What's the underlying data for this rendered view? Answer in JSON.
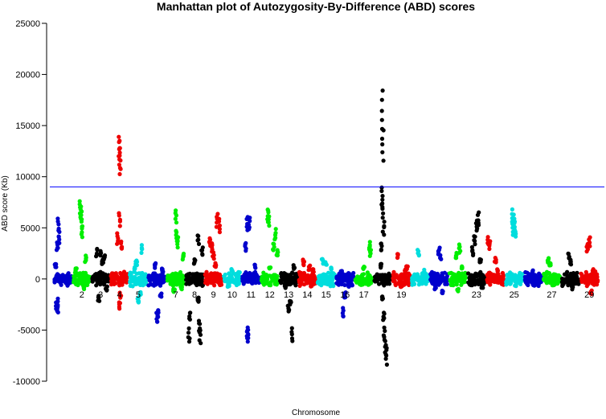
{
  "chart_data": {
    "type": "scatter",
    "title": "Manhattan plot of Autozygosity-By-Difference (ABD) scores",
    "xlabel": "Chromosome",
    "ylabel": "ABD score (Kb)",
    "ylim": [
      -10000,
      25000
    ],
    "yticks": [
      "25000",
      "20000",
      "15000",
      "10000",
      "5000",
      "0",
      "-5000",
      "-10000"
    ],
    "ytick_values": [
      25000,
      20000,
      15000,
      10000,
      5000,
      0,
      -5000,
      -10000
    ],
    "threshold": {
      "y": 9000,
      "color": "#0000ff"
    },
    "colors": [
      "#0000cc",
      "#00ee00",
      "#000000",
      "#ee0000",
      "#00dddd"
    ],
    "chromosome_labels": [
      {
        "label": "2",
        "x": 2
      },
      {
        "label": "3",
        "x": 3
      },
      {
        "label": "4",
        "x": 4
      },
      {
        "label": "5",
        "x": 5
      },
      {
        "label": "7",
        "x": 7
      },
      {
        "label": "8",
        "x": 8
      },
      {
        "label": "9",
        "x": 9
      },
      {
        "label": "10",
        "x": 10
      },
      {
        "label": "11",
        "x": 11
      },
      {
        "label": "12",
        "x": 12
      },
      {
        "label": "13",
        "x": 13
      },
      {
        "label": "14",
        "x": 14
      },
      {
        "label": "15",
        "x": 15
      },
      {
        "label": "16",
        "x": 16
      },
      {
        "label": "17",
        "x": 17
      },
      {
        "label": "19",
        "x": 19
      },
      {
        "label": "23",
        "x": 23
      },
      {
        "label": "25",
        "x": 25
      },
      {
        "label": "27",
        "x": 27
      },
      {
        "label": "29",
        "x": 29
      }
    ],
    "chromosomes": [
      {
        "chr": 1,
        "start": 0.5,
        "end": 1.5,
        "color": "#0000cc",
        "cluster": [
          [
            0.6,
            1500
          ],
          [
            0.75,
            5800
          ],
          [
            0.7,
            3500
          ],
          [
            0.65,
            -3000
          ],
          [
            0.7,
            -2500
          ],
          [
            0.72,
            -3200
          ],
          [
            0.8,
            4500
          ]
        ]
      },
      {
        "chr": 2,
        "start": 1.5,
        "end": 2.5,
        "color": "#00ee00",
        "cluster": [
          [
            1.9,
            7700
          ],
          [
            1.95,
            7200
          ],
          [
            2.0,
            6500
          ],
          [
            2.0,
            5200
          ],
          [
            1.7,
            1000
          ],
          [
            2.1,
            -900
          ],
          [
            2.2,
            2200
          ]
        ]
      },
      {
        "chr": 3,
        "start": 2.5,
        "end": 3.5,
        "color": "#000000",
        "cluster": [
          [
            2.8,
            2900
          ],
          [
            3.0,
            2800
          ],
          [
            3.2,
            2300
          ],
          [
            2.9,
            -2100
          ],
          [
            3.3,
            -1100
          ],
          [
            3.1,
            1800
          ]
        ]
      },
      {
        "chr": 4,
        "start": 3.5,
        "end": 4.5,
        "color": "#ee0000",
        "cluster": [
          [
            4.0,
            14000
          ],
          [
            4.05,
            13500
          ],
          [
            4.02,
            12900
          ],
          [
            4.0,
            6500
          ],
          [
            3.9,
            4400
          ],
          [
            4.1,
            3600
          ],
          [
            4.0,
            -2800
          ],
          [
            4.05,
            -1800
          ]
        ]
      },
      {
        "chr": 5,
        "start": 4.5,
        "end": 5.5,
        "color": "#00dddd",
        "cluster": [
          [
            5.2,
            3300
          ],
          [
            4.9,
            1800
          ],
          [
            5.0,
            -2300
          ],
          [
            5.1,
            -1500
          ],
          [
            4.8,
            1200
          ]
        ]
      },
      {
        "chr": 6,
        "start": 5.5,
        "end": 6.5,
        "color": "#0000cc",
        "cluster": [
          [
            6.0,
            -4300
          ],
          [
            6.05,
            -3700
          ],
          [
            5.9,
            1500
          ],
          [
            6.2,
            -1800
          ],
          [
            6.3,
            1000
          ]
        ]
      },
      {
        "chr": 7,
        "start": 6.5,
        "end": 7.5,
        "color": "#00ee00",
        "cluster": [
          [
            7.0,
            6800
          ],
          [
            7.05,
            4700
          ],
          [
            7.1,
            4000
          ],
          [
            7.4,
            2500
          ],
          [
            7.3,
            -1000
          ],
          [
            6.9,
            -1200
          ]
        ]
      },
      {
        "chr": 8,
        "start": 7.5,
        "end": 8.5,
        "color": "#000000",
        "cluster": [
          [
            7.7,
            -6200
          ],
          [
            7.75,
            -4000
          ],
          [
            8.2,
            4300
          ],
          [
            8.3,
            -6200
          ],
          [
            8.25,
            -5000
          ],
          [
            8.2,
            -2300
          ],
          [
            8.0,
            1800
          ],
          [
            8.4,
            3000
          ]
        ]
      },
      {
        "chr": 9,
        "start": 8.5,
        "end": 9.5,
        "color": "#ee0000",
        "cluster": [
          [
            9.2,
            6400
          ],
          [
            9.3,
            5800
          ],
          [
            8.8,
            4100
          ],
          [
            8.9,
            3400
          ],
          [
            9.0,
            2500
          ],
          [
            9.1,
            1500
          ]
        ]
      },
      {
        "chr": 10,
        "start": 9.5,
        "end": 10.5,
        "color": "#00dddd",
        "cluster": [
          [
            9.8,
            -700
          ],
          [
            10.0,
            900
          ],
          [
            10.2,
            -500
          ],
          [
            10.3,
            600
          ]
        ]
      },
      {
        "chr": 11,
        "start": 10.5,
        "end": 11.5,
        "color": "#0000cc",
        "cluster": [
          [
            10.8,
            6100
          ],
          [
            10.9,
            6000
          ],
          [
            10.8,
            -5800
          ],
          [
            10.85,
            -6200
          ],
          [
            11.2,
            1400
          ],
          [
            10.7,
            3500
          ]
        ]
      },
      {
        "chr": 12,
        "start": 11.5,
        "end": 12.5,
        "color": "#00ee00",
        "cluster": [
          [
            11.9,
            6900
          ],
          [
            11.95,
            6400
          ],
          [
            12.3,
            4800
          ],
          [
            12.2,
            3500
          ],
          [
            12.4,
            2800
          ],
          [
            12.0,
            1200
          ]
        ]
      },
      {
        "chr": 13,
        "start": 12.5,
        "end": 13.5,
        "color": "#000000",
        "cluster": [
          [
            13.2,
            -6100
          ],
          [
            13.0,
            -3300
          ],
          [
            13.1,
            -2600
          ],
          [
            13.3,
            1300
          ],
          [
            12.8,
            -900
          ]
        ]
      },
      {
        "chr": 14,
        "start": 13.5,
        "end": 14.5,
        "color": "#ee0000",
        "cluster": [
          [
            13.8,
            1800
          ],
          [
            14.1,
            1200
          ],
          [
            14.2,
            -700
          ],
          [
            14.3,
            900
          ]
        ]
      },
      {
        "chr": 15,
        "start": 14.5,
        "end": 15.5,
        "color": "#00dddd",
        "cluster": [
          [
            14.8,
            2000
          ],
          [
            15.0,
            1600
          ],
          [
            15.2,
            -600
          ],
          [
            15.3,
            1100
          ]
        ]
      },
      {
        "chr": 16,
        "start": 15.5,
        "end": 16.5,
        "color": "#0000cc",
        "cluster": [
          [
            15.9,
            -3700
          ],
          [
            16.0,
            -1800
          ],
          [
            15.8,
            800
          ],
          [
            16.2,
            -700
          ]
        ]
      },
      {
        "chr": 17,
        "start": 16.5,
        "end": 17.5,
        "color": "#00ee00",
        "cluster": [
          [
            17.3,
            3600
          ],
          [
            17.35,
            2800
          ],
          [
            17.0,
            1200
          ],
          [
            16.9,
            -600
          ]
        ]
      },
      {
        "chr": 18,
        "start": 17.5,
        "end": 18.5,
        "color": "#000000",
        "cluster": [
          [
            18.0,
            18300
          ],
          [
            18.02,
            14500
          ],
          [
            17.98,
            9000
          ],
          [
            18.0,
            7500
          ],
          [
            18.05,
            5500
          ],
          [
            17.95,
            3500
          ],
          [
            17.9,
            1500
          ],
          [
            18.0,
            -2000
          ],
          [
            18.05,
            -4000
          ],
          [
            18.1,
            -6000
          ],
          [
            18.15,
            -7500
          ],
          [
            18.2,
            -8300
          ]
        ]
      },
      {
        "chr": 19,
        "start": 18.5,
        "end": 19.5,
        "color": "#ee0000",
        "cluster": [
          [
            18.8,
            2500
          ],
          [
            19.0,
            -800
          ],
          [
            19.2,
            900
          ],
          [
            19.3,
            1300
          ]
        ]
      },
      {
        "chr": 20,
        "start": 19.5,
        "end": 20.5,
        "color": "#00dddd",
        "cluster": [
          [
            19.9,
            2900
          ],
          [
            20.1,
            -500
          ],
          [
            20.2,
            800
          ]
        ]
      },
      {
        "chr": 21,
        "start": 20.5,
        "end": 21.5,
        "color": "#0000cc",
        "cluster": [
          [
            21.0,
            3000
          ],
          [
            21.1,
            2400
          ],
          [
            20.8,
            -900
          ],
          [
            21.2,
            -1500
          ]
        ]
      },
      {
        "chr": 22,
        "start": 21.5,
        "end": 22.5,
        "color": "#00ee00",
        "cluster": [
          [
            22.1,
            3300
          ],
          [
            21.9,
            2500
          ],
          [
            22.0,
            -1200
          ],
          [
            22.2,
            1200
          ]
        ]
      },
      {
        "chr": 23,
        "start": 22.5,
        "end": 23.5,
        "color": "#000000",
        "cluster": [
          [
            23.1,
            6500
          ],
          [
            23.0,
            5800
          ],
          [
            22.9,
            4300
          ],
          [
            22.8,
            3000
          ],
          [
            23.2,
            2000
          ],
          [
            23.3,
            -900
          ]
        ]
      },
      {
        "chr": 24,
        "start": 23.5,
        "end": 24.5,
        "color": "#ee0000",
        "cluster": [
          [
            23.6,
            4100
          ],
          [
            23.7,
            3700
          ],
          [
            24.0,
            2000
          ],
          [
            24.1,
            1000
          ]
        ]
      },
      {
        "chr": 25,
        "start": 24.5,
        "end": 25.5,
        "color": "#00dddd",
        "cluster": [
          [
            24.9,
            6700
          ],
          [
            25.0,
            6300
          ],
          [
            24.95,
            5500
          ],
          [
            25.05,
            5100
          ]
        ]
      },
      {
        "chr": 26,
        "start": 25.5,
        "end": 26.5,
        "color": "#0000cc",
        "cluster": [
          [
            26.0,
            800
          ],
          [
            26.2,
            -500
          ],
          [
            25.8,
            400
          ]
        ]
      },
      {
        "chr": 27,
        "start": 26.5,
        "end": 27.5,
        "color": "#00ee00",
        "cluster": [
          [
            26.8,
            2000
          ],
          [
            26.9,
            1600
          ],
          [
            27.1,
            -600
          ]
        ]
      },
      {
        "chr": 28,
        "start": 27.5,
        "end": 28.5,
        "color": "#000000",
        "cluster": [
          [
            27.9,
            2500
          ],
          [
            28.0,
            1800
          ],
          [
            28.1,
            -900
          ]
        ]
      },
      {
        "chr": 29,
        "start": 28.5,
        "end": 29.5,
        "color": "#ee0000",
        "cluster": [
          [
            29.0,
            4000
          ],
          [
            28.9,
            3400
          ],
          [
            29.1,
            -1500
          ],
          [
            29.2,
            900
          ]
        ]
      }
    ],
    "grid": false,
    "legend": "none"
  }
}
